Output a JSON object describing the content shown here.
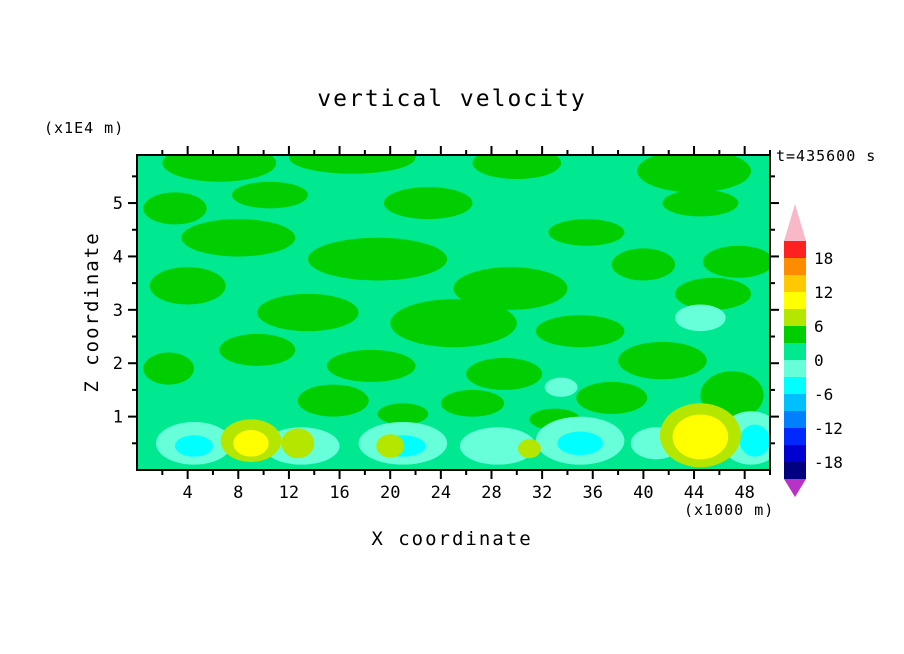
{
  "chart_data": {
    "type": "contour",
    "title": "vertical velocity",
    "time_label": "t=435600 s",
    "xlabel": "X coordinate",
    "xunit": "(x1000 m)",
    "ylabel": "Z coordinate",
    "yunit": "(x1E4 m)",
    "xlim": [
      0,
      50
    ],
    "ylim": [
      0,
      5.9
    ],
    "x_ticks": [
      4,
      8,
      12,
      16,
      20,
      24,
      28,
      32,
      36,
      40,
      44,
      48
    ],
    "x_minor_step": 2,
    "y_ticks": [
      1,
      2,
      3,
      4,
      5
    ],
    "contour_interval": 3,
    "levels": [
      -21,
      -18,
      -15,
      -12,
      -9,
      -6,
      -3,
      0,
      3,
      6,
      9,
      12,
      15,
      18,
      21
    ],
    "palette": {
      "base": "#00E890",
      "p3": "#00CE00",
      "p6": "#B4E600",
      "p9": "#FFFF00",
      "p12": "#FFC800",
      "m3": "#66FFD9",
      "m6": "#00FFFF"
    },
    "colorbar": {
      "labels": [
        "18",
        "12",
        "6",
        "0",
        "-6",
        "-12",
        "-18"
      ],
      "over_color": "#F8B8C8",
      "under_color": "#B832C8",
      "colors": [
        "#FF2020",
        "#FF8C00",
        "#FFC800",
        "#FFFF00",
        "#B4E600",
        "#00CE00",
        "#00E890",
        "#66FFD9",
        "#00FFFF",
        "#00BFFF",
        "#0080FF",
        "#0028FF",
        "#0000D0",
        "#000080"
      ]
    },
    "features": [
      {
        "band": "p3",
        "x": 6.5,
        "z": 5.75,
        "rx": 4.5,
        "rz": 0.35
      },
      {
        "band": "p3",
        "x": 17,
        "z": 5.85,
        "rx": 5,
        "rz": 0.3
      },
      {
        "band": "p3",
        "x": 30,
        "z": 5.75,
        "rx": 3.5,
        "rz": 0.3
      },
      {
        "band": "p3",
        "x": 44,
        "z": 5.6,
        "rx": 4.5,
        "rz": 0.4
      },
      {
        "band": "p3",
        "x": 10.5,
        "z": 5.15,
        "rx": 3,
        "rz": 0.25
      },
      {
        "band": "p3",
        "x": 23,
        "z": 5.0,
        "rx": 3.5,
        "rz": 0.3
      },
      {
        "band": "p3",
        "x": 44.5,
        "z": 5.0,
        "rx": 3,
        "rz": 0.25
      },
      {
        "band": "p3",
        "x": 3,
        "z": 4.9,
        "rx": 2.5,
        "rz": 0.3
      },
      {
        "band": "p3",
        "x": 8,
        "z": 4.35,
        "rx": 4.5,
        "rz": 0.35
      },
      {
        "band": "p3",
        "x": 35.5,
        "z": 4.45,
        "rx": 3,
        "rz": 0.25
      },
      {
        "band": "p3",
        "x": 19,
        "z": 3.95,
        "rx": 5.5,
        "rz": 0.4
      },
      {
        "band": "p3",
        "x": 40,
        "z": 3.85,
        "rx": 2.5,
        "rz": 0.3
      },
      {
        "band": "p3",
        "x": 47.5,
        "z": 3.9,
        "rx": 2.8,
        "rz": 0.3
      },
      {
        "band": "p3",
        "x": 4,
        "z": 3.45,
        "rx": 3,
        "rz": 0.35
      },
      {
        "band": "p3",
        "x": 29.5,
        "z": 3.4,
        "rx": 4.5,
        "rz": 0.4
      },
      {
        "band": "p3",
        "x": 45.5,
        "z": 3.3,
        "rx": 3,
        "rz": 0.3
      },
      {
        "band": "p3",
        "x": 13.5,
        "z": 2.95,
        "rx": 4,
        "rz": 0.35
      },
      {
        "band": "p3",
        "x": 25,
        "z": 2.75,
        "rx": 5,
        "rz": 0.45
      },
      {
        "band": "p3",
        "x": 35,
        "z": 2.6,
        "rx": 3.5,
        "rz": 0.3
      },
      {
        "band": "p3",
        "x": 9.5,
        "z": 2.25,
        "rx": 3,
        "rz": 0.3
      },
      {
        "band": "p3",
        "x": 18.5,
        "z": 1.95,
        "rx": 3.5,
        "rz": 0.3
      },
      {
        "band": "p3",
        "x": 29,
        "z": 1.8,
        "rx": 3,
        "rz": 0.3
      },
      {
        "band": "p3",
        "x": 41.5,
        "z": 2.05,
        "rx": 3.5,
        "rz": 0.35
      },
      {
        "band": "p3",
        "x": 2.5,
        "z": 1.9,
        "rx": 2,
        "rz": 0.3
      },
      {
        "band": "p3",
        "x": 15.5,
        "z": 1.3,
        "rx": 2.8,
        "rz": 0.3
      },
      {
        "band": "p3",
        "x": 26.5,
        "z": 1.25,
        "rx": 2.5,
        "rz": 0.25
      },
      {
        "band": "p3",
        "x": 37.5,
        "z": 1.35,
        "rx": 2.8,
        "rz": 0.3
      },
      {
        "band": "p3",
        "x": 47,
        "z": 1.4,
        "rx": 2.5,
        "rz": 0.45
      },
      {
        "band": "p3",
        "x": 21,
        "z": 1.05,
        "rx": 2,
        "rz": 0.2
      },
      {
        "band": "p3",
        "x": 33,
        "z": 0.95,
        "rx": 2,
        "rz": 0.2
      },
      {
        "band": "m3",
        "x": 4.5,
        "z": 0.5,
        "rx": 3,
        "rz": 0.4
      },
      {
        "band": "m3",
        "x": 13,
        "z": 0.45,
        "rx": 3,
        "rz": 0.35
      },
      {
        "band": "m3",
        "x": 21,
        "z": 0.5,
        "rx": 3.5,
        "rz": 0.4
      },
      {
        "band": "m3",
        "x": 28.5,
        "z": 0.45,
        "rx": 3,
        "rz": 0.35
      },
      {
        "band": "m3",
        "x": 35,
        "z": 0.55,
        "rx": 3.5,
        "rz": 0.45
      },
      {
        "band": "m3",
        "x": 41,
        "z": 0.5,
        "rx": 2,
        "rz": 0.3
      },
      {
        "band": "m3",
        "x": 48.5,
        "z": 0.6,
        "rx": 2.5,
        "rz": 0.5
      },
      {
        "band": "m3",
        "x": 44.5,
        "z": 2.85,
        "rx": 2,
        "rz": 0.25
      },
      {
        "band": "m3",
        "x": 33.5,
        "z": 1.55,
        "rx": 1.3,
        "rz": 0.18
      },
      {
        "band": "m6",
        "x": 4.5,
        "z": 0.45,
        "rx": 1.5,
        "rz": 0.2
      },
      {
        "band": "m6",
        "x": 21,
        "z": 0.45,
        "rx": 1.8,
        "rz": 0.2
      },
      {
        "band": "m6",
        "x": 35,
        "z": 0.5,
        "rx": 1.8,
        "rz": 0.22
      },
      {
        "band": "m6",
        "x": 48.8,
        "z": 0.55,
        "rx": 1.2,
        "rz": 0.3
      },
      {
        "band": "p6",
        "x": 9,
        "z": 0.55,
        "rx": 2.4,
        "rz": 0.4
      },
      {
        "band": "p6",
        "x": 12.7,
        "z": 0.5,
        "rx": 1.3,
        "rz": 0.28
      },
      {
        "band": "p6",
        "x": 20,
        "z": 0.45,
        "rx": 1.1,
        "rz": 0.22
      },
      {
        "band": "p6",
        "x": 31,
        "z": 0.4,
        "rx": 0.9,
        "rz": 0.18
      },
      {
        "band": "p6",
        "x": 44.5,
        "z": 0.65,
        "rx": 3.2,
        "rz": 0.6
      },
      {
        "band": "p9",
        "x": 9,
        "z": 0.5,
        "rx": 1.4,
        "rz": 0.25
      },
      {
        "band": "p9",
        "x": 44.5,
        "z": 0.62,
        "rx": 2.2,
        "rz": 0.42
      }
    ]
  }
}
